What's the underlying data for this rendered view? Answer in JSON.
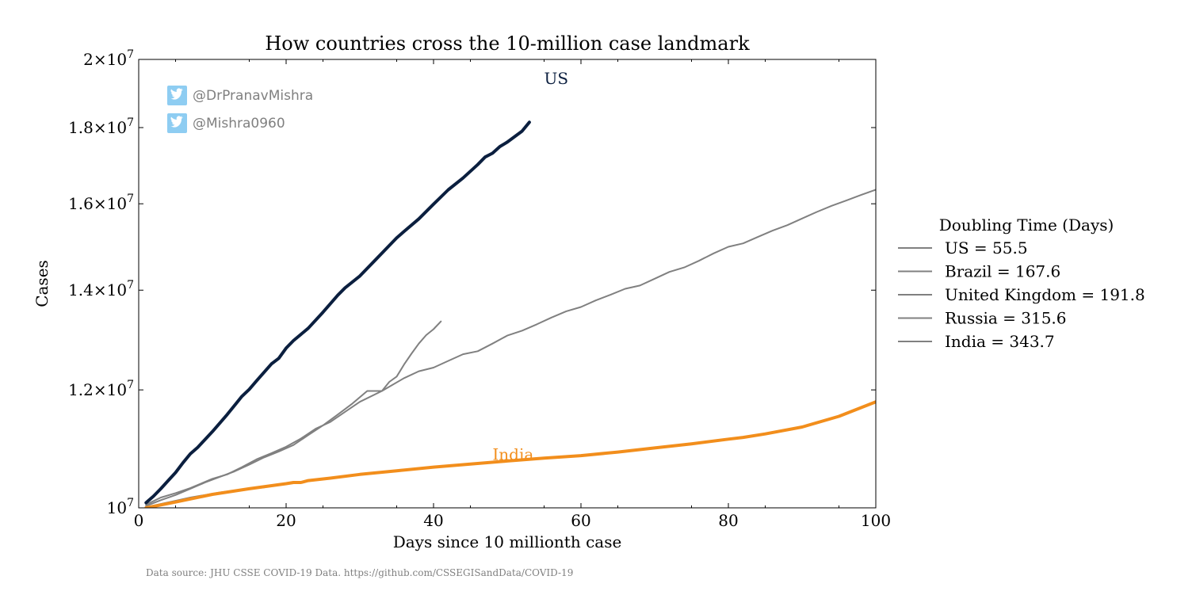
{
  "chart_data": {
    "type": "line",
    "title": "How countries cross the 10-million case landmark",
    "xlabel": "Days since 10 millionth case",
    "ylabel": "Cases",
    "xlim": [
      0,
      100
    ],
    "ylim": [
      10000000,
      20000000
    ],
    "y_scale": "log",
    "x_ticks": [
      0,
      20,
      40,
      60,
      80,
      100
    ],
    "x_tick_labels": [
      "0",
      "20",
      "40",
      "60",
      "80",
      "100"
    ],
    "y_ticks": [
      {
        "value": 10000000,
        "mantissa": "10",
        "exponent": "7"
      },
      {
        "value": 12000000,
        "mantissa": "1.2×10",
        "exponent": "7"
      },
      {
        "value": 14000000,
        "mantissa": "1.4×10",
        "exponent": "7"
      },
      {
        "value": 16000000,
        "mantissa": "1.6×10",
        "exponent": "7"
      },
      {
        "value": 18000000,
        "mantissa": "1.8×10",
        "exponent": "7"
      },
      {
        "value": 20000000,
        "mantissa": "2×10",
        "exponent": "7"
      }
    ],
    "legend": {
      "title": "Doubling Time (Days)",
      "placement": "outside-right",
      "entries": [
        "US = 55.5",
        "Brazil = 167.6",
        "United Kingdom = 191.8",
        "Russia = 315.6",
        "India = 343.7"
      ]
    },
    "annotations": [
      {
        "text": "US",
        "x": 55,
        "y": 19400000,
        "color": "#0b1f3f"
      },
      {
        "text": "India",
        "x": 48,
        "y": 10850000,
        "color": "#f28e1c"
      }
    ],
    "watermarks": [
      "@DrPranavMishra",
      "@Mishra0960"
    ],
    "series": [
      {
        "name": "US",
        "color": "#0b1f3f",
        "width": 4,
        "x": [
          1,
          2,
          3,
          4,
          5,
          6,
          7,
          8,
          10,
          12,
          14,
          15,
          16,
          18,
          19,
          20,
          21,
          23,
          25,
          27,
          28,
          30,
          32,
          34,
          35,
          36,
          38,
          40,
          42,
          44,
          46,
          47,
          48,
          49,
          50,
          52,
          53
        ],
        "y": [
          10080000,
          10180000,
          10300000,
          10430000,
          10560000,
          10720000,
          10870000,
          10980000,
          11250000,
          11550000,
          11880000,
          12010000,
          12170000,
          12490000,
          12600000,
          12800000,
          12950000,
          13200000,
          13530000,
          13890000,
          14050000,
          14310000,
          14650000,
          15000000,
          15180000,
          15330000,
          15630000,
          15990000,
          16350000,
          16650000,
          17000000,
          17200000,
          17300000,
          17480000,
          17600000,
          17900000,
          18150000
        ]
      },
      {
        "name": "Brazil",
        "color": "#808080",
        "width": 2,
        "x": [
          1,
          3,
          5,
          7,
          10,
          12,
          14,
          16,
          18,
          20,
          22,
          24,
          26,
          28,
          30,
          33,
          36,
          38,
          40,
          42,
          44,
          46,
          48,
          50,
          52,
          54,
          56,
          58,
          60,
          62,
          64,
          66,
          68,
          70,
          72,
          74,
          76,
          78,
          80,
          82,
          84,
          86,
          88,
          90,
          92,
          94,
          96,
          98,
          100
        ],
        "y": [
          10050000,
          10160000,
          10230000,
          10310000,
          10460000,
          10530000,
          10650000,
          10780000,
          10880000,
          10990000,
          11130000,
          11300000,
          11420000,
          11600000,
          11780000,
          11980000,
          12220000,
          12350000,
          12420000,
          12550000,
          12680000,
          12740000,
          12890000,
          13050000,
          13150000,
          13280000,
          13420000,
          13550000,
          13640000,
          13780000,
          13900000,
          14030000,
          14100000,
          14250000,
          14400000,
          14500000,
          14650000,
          14820000,
          14970000,
          15050000,
          15200000,
          15350000,
          15480000,
          15640000,
          15800000,
          15950000,
          16080000,
          16220000,
          16350000
        ]
      },
      {
        "name": "United Kingdom",
        "color": "#808080",
        "width": 2,
        "x": [
          1,
          3,
          5,
          7,
          9,
          11,
          13,
          15,
          17,
          19,
          21,
          23,
          25,
          27,
          29,
          31,
          32,
          33,
          34,
          35,
          36,
          37,
          38,
          39,
          40,
          41
        ],
        "y": [
          10030000,
          10120000,
          10200000,
          10300000,
          10400000,
          10490000,
          10580000,
          10690000,
          10810000,
          10910000,
          11020000,
          11190000,
          11360000,
          11550000,
          11750000,
          11980000,
          11980000,
          11980000,
          12150000,
          12250000,
          12480000,
          12690000,
          12890000,
          13060000,
          13180000,
          13340000
        ]
      },
      {
        "name": "Russia",
        "color": "#808080",
        "width": 2,
        "x": [
          1,
          3,
          5,
          7,
          9,
          11,
          13,
          15,
          17
        ],
        "y": [
          10010000,
          10060000,
          10110000,
          10160000,
          10200000,
          10240000,
          10270000,
          10300000,
          10320000
        ]
      },
      {
        "name": "India",
        "color": "#f28e1c",
        "width": 4,
        "x": [
          1,
          5,
          10,
          15,
          20,
          21,
          22,
          23,
          26,
          30,
          35,
          40,
          45,
          50,
          55,
          60,
          65,
          70,
          75,
          80,
          82,
          85,
          90,
          95,
          100
        ],
        "y": [
          10000000,
          10090000,
          10210000,
          10300000,
          10380000,
          10400000,
          10400000,
          10430000,
          10470000,
          10530000,
          10590000,
          10650000,
          10700000,
          10750000,
          10800000,
          10840000,
          10900000,
          10970000,
          11040000,
          11120000,
          11150000,
          11210000,
          11330000,
          11520000,
          11780000
        ]
      }
    ]
  },
  "footer": {
    "source": "Data source: JHU CSSE COVID-19 Data. https://github.com/CSSEGISandData/COVID-19"
  }
}
